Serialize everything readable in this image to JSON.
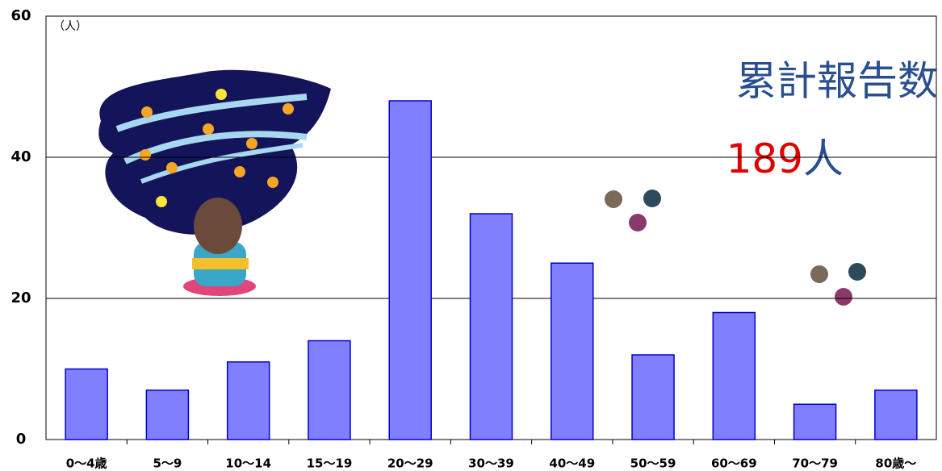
{
  "chart_data": {
    "type": "bar",
    "unit_label": "（人）",
    "annotation": "累計報告数",
    "total_count": 189,
    "total_unit": "人",
    "categories": [
      "0～4歳",
      "5～9",
      "10～14",
      "15～19",
      "20～29",
      "30～39",
      "40～49",
      "50～59",
      "60～69",
      "70～79",
      "80歳～"
    ],
    "values": [
      10,
      7,
      11,
      14,
      48,
      32,
      25,
      12,
      18,
      5,
      7
    ],
    "color": "#8080ff",
    "ylim": [
      0,
      60
    ],
    "yticks": [
      0,
      20,
      40,
      60
    ],
    "grid": true
  }
}
